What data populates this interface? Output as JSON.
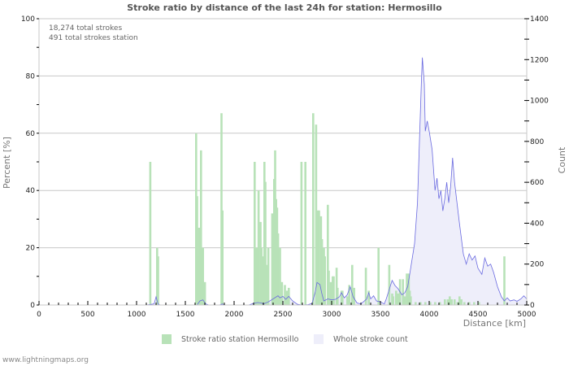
{
  "title": "Stroke ratio by distance of the last 24h for station: Hermosillo",
  "info": {
    "total_strokes": "18,274 total strokes",
    "station_strokes": "491 total strokes station"
  },
  "legend": {
    "ratio_label": "Stroke ratio station Hermosillo",
    "count_label": "Whole stroke count"
  },
  "footer": "www.lightningmaps.org",
  "colors": {
    "ratio_bar": "#b8e2b8",
    "count_fill": "#eeeefa",
    "count_line": "#6a6ae0",
    "grid": "#c8c8c8",
    "axis": "#c8c8c8"
  },
  "chart_data": {
    "type": "bar",
    "title": "Stroke ratio by distance of the last 24h for station: Hermosillo",
    "xlabel": "Distance   [km]",
    "ylabel": "Percent   [%]",
    "y2label": "Count",
    "xlim": [
      0,
      5000
    ],
    "ylim": [
      0,
      100
    ],
    "y2lim": [
      0,
      1400
    ],
    "x_ticks": [
      0,
      500,
      1000,
      1500,
      2000,
      2500,
      3000,
      3500,
      4000,
      4500,
      5000
    ],
    "y_ticks": [
      0,
      20,
      40,
      60,
      80,
      100
    ],
    "y2_ticks": [
      0,
      200,
      400,
      600,
      800,
      1000,
      1200,
      1400
    ],
    "grid": true,
    "bin_km": 10,
    "series": [
      {
        "name": "Stroke ratio station Hermosillo",
        "type": "bar",
        "axis": "left",
        "points": [
          [
            1130,
            50
          ],
          [
            1200,
            20
          ],
          [
            1210,
            17
          ],
          [
            1600,
            60
          ],
          [
            1610,
            38
          ],
          [
            1620,
            17
          ],
          [
            1630,
            27
          ],
          [
            1650,
            54
          ],
          [
            1660,
            20
          ],
          [
            1670,
            20
          ],
          [
            1690,
            8
          ],
          [
            1860,
            67
          ],
          [
            1870,
            33
          ],
          [
            2200,
            50
          ],
          [
            2220,
            20
          ],
          [
            2240,
            40
          ],
          [
            2260,
            29
          ],
          [
            2270,
            20
          ],
          [
            2280,
            17
          ],
          [
            2300,
            50
          ],
          [
            2310,
            43
          ],
          [
            2320,
            14
          ],
          [
            2340,
            20
          ],
          [
            2380,
            32
          ],
          [
            2400,
            44
          ],
          [
            2410,
            54
          ],
          [
            2420,
            37
          ],
          [
            2430,
            34
          ],
          [
            2440,
            25
          ],
          [
            2460,
            20
          ],
          [
            2480,
            8
          ],
          [
            2510,
            7
          ],
          [
            2530,
            5
          ],
          [
            2550,
            6
          ],
          [
            2680,
            50
          ],
          [
            2720,
            50
          ],
          [
            2800,
            67
          ],
          [
            2830,
            63
          ],
          [
            2850,
            33
          ],
          [
            2860,
            33
          ],
          [
            2880,
            31
          ],
          [
            2890,
            23
          ],
          [
            2910,
            20
          ],
          [
            2920,
            17
          ],
          [
            2950,
            35
          ],
          [
            2960,
            12
          ],
          [
            2980,
            8
          ],
          [
            3000,
            10
          ],
          [
            3010,
            10
          ],
          [
            3040,
            13
          ],
          [
            3050,
            6
          ],
          [
            3090,
            5
          ],
          [
            3100,
            5
          ],
          [
            3150,
            3
          ],
          [
            3170,
            7
          ],
          [
            3200,
            14
          ],
          [
            3220,
            6
          ],
          [
            3340,
            13
          ],
          [
            3370,
            5
          ],
          [
            3470,
            20
          ],
          [
            3580,
            14
          ],
          [
            3610,
            4
          ],
          [
            3620,
            3
          ],
          [
            3650,
            5
          ],
          [
            3670,
            4
          ],
          [
            3690,
            9
          ],
          [
            3720,
            9
          ],
          [
            3740,
            3
          ],
          [
            3760,
            11
          ],
          [
            3770,
            9
          ],
          [
            3780,
            11
          ],
          [
            3790,
            5
          ],
          [
            3800,
            3
          ],
          [
            3850,
            1
          ],
          [
            3900,
            1
          ],
          [
            3950,
            1
          ],
          [
            4000,
            1
          ],
          [
            4050,
            1
          ],
          [
            4100,
            1
          ],
          [
            4150,
            2
          ],
          [
            4180,
            2
          ],
          [
            4200,
            3
          ],
          [
            4220,
            2
          ],
          [
            4250,
            2
          ],
          [
            4280,
            1
          ],
          [
            4300,
            3
          ],
          [
            4320,
            2
          ],
          [
            4350,
            1
          ],
          [
            4400,
            1
          ],
          [
            4450,
            1
          ],
          [
            4500,
            1
          ],
          [
            4760,
            17
          ]
        ]
      },
      {
        "name": "Whole stroke count",
        "type": "area",
        "axis": "right",
        "points": [
          [
            0,
            0
          ],
          [
            1100,
            0
          ],
          [
            1180,
            5
          ],
          [
            1200,
            40
          ],
          [
            1220,
            5
          ],
          [
            1240,
            0
          ],
          [
            1620,
            0
          ],
          [
            1650,
            20
          ],
          [
            1680,
            25
          ],
          [
            1710,
            5
          ],
          [
            1740,
            0
          ],
          [
            1850,
            0
          ],
          [
            1880,
            5
          ],
          [
            1900,
            0
          ],
          [
            2150,
            0
          ],
          [
            2200,
            8
          ],
          [
            2240,
            12
          ],
          [
            2280,
            10
          ],
          [
            2300,
            5
          ],
          [
            2350,
            15
          ],
          [
            2400,
            30
          ],
          [
            2450,
            45
          ],
          [
            2470,
            35
          ],
          [
            2500,
            42
          ],
          [
            2530,
            28
          ],
          [
            2560,
            42
          ],
          [
            2600,
            20
          ],
          [
            2650,
            3
          ],
          [
            2700,
            0
          ],
          [
            2760,
            2
          ],
          [
            2800,
            8
          ],
          [
            2830,
            60
          ],
          [
            2850,
            110
          ],
          [
            2880,
            100
          ],
          [
            2900,
            55
          ],
          [
            2920,
            20
          ],
          [
            2960,
            30
          ],
          [
            3000,
            25
          ],
          [
            3040,
            28
          ],
          [
            3080,
            40
          ],
          [
            3100,
            60
          ],
          [
            3130,
            35
          ],
          [
            3160,
            50
          ],
          [
            3190,
            90
          ],
          [
            3220,
            40
          ],
          [
            3260,
            10
          ],
          [
            3300,
            5
          ],
          [
            3360,
            30
          ],
          [
            3380,
            60
          ],
          [
            3400,
            30
          ],
          [
            3430,
            45
          ],
          [
            3460,
            20
          ],
          [
            3500,
            15
          ],
          [
            3540,
            5
          ],
          [
            3560,
            30
          ],
          [
            3580,
            60
          ],
          [
            3620,
            120
          ],
          [
            3650,
            95
          ],
          [
            3680,
            80
          ],
          [
            3720,
            50
          ],
          [
            3750,
            60
          ],
          [
            3780,
            90
          ],
          [
            3800,
            150
          ],
          [
            3850,
            300
          ],
          [
            3880,
            500
          ],
          [
            3900,
            800
          ],
          [
            3920,
            1090
          ],
          [
            3930,
            1210
          ],
          [
            3950,
            1080
          ],
          [
            3960,
            850
          ],
          [
            3980,
            900
          ],
          [
            4000,
            850
          ],
          [
            4030,
            760
          ],
          [
            4060,
            560
          ],
          [
            4080,
            620
          ],
          [
            4100,
            520
          ],
          [
            4120,
            560
          ],
          [
            4140,
            460
          ],
          [
            4160,
            520
          ],
          [
            4180,
            600
          ],
          [
            4200,
            500
          ],
          [
            4220,
            580
          ],
          [
            4240,
            720
          ],
          [
            4260,
            600
          ],
          [
            4280,
            520
          ],
          [
            4310,
            400
          ],
          [
            4350,
            250
          ],
          [
            4380,
            200
          ],
          [
            4410,
            250
          ],
          [
            4440,
            220
          ],
          [
            4470,
            240
          ],
          [
            4500,
            180
          ],
          [
            4540,
            150
          ],
          [
            4570,
            230
          ],
          [
            4600,
            190
          ],
          [
            4630,
            200
          ],
          [
            4660,
            160
          ],
          [
            4700,
            90
          ],
          [
            4740,
            40
          ],
          [
            4770,
            20
          ],
          [
            4800,
            35
          ],
          [
            4830,
            20
          ],
          [
            4870,
            25
          ],
          [
            4900,
            18
          ],
          [
            4940,
            30
          ],
          [
            4970,
            45
          ],
          [
            5000,
            30
          ]
        ]
      }
    ]
  },
  "watermark": "www.lightningmaps.org"
}
